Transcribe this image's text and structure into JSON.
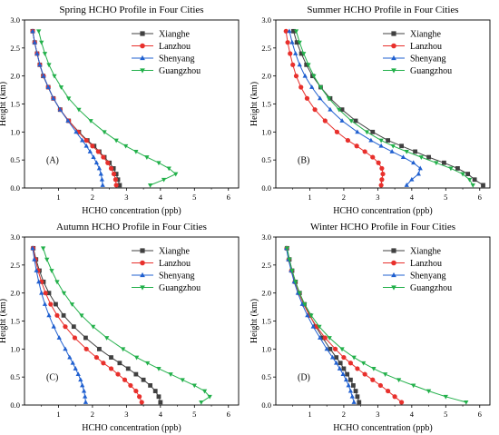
{
  "colors": {
    "Xianghe": "#404040",
    "Lanzhou": "#e8302c",
    "Shenyang": "#2060d0",
    "Guangzhou": "#22b04a"
  },
  "chart_data": [
    {
      "type": "line",
      "title": "Spring HCHO Profile in Four Cities",
      "panel_label": "(A)",
      "xlabel": "HCHO concentration (ppb)",
      "ylabel": "Height (km)",
      "xlim": [
        0,
        6.3
      ],
      "ylim": [
        0,
        3.0
      ],
      "xticks": [
        "1",
        "2",
        "3",
        "4",
        "5",
        "6"
      ],
      "yticks": [
        "0.0",
        "0.5",
        "1.0",
        "1.5",
        "2.0",
        "2.5",
        "3.0"
      ],
      "legend": "top-right",
      "series": [
        {
          "name": "Xianghe",
          "marker": "square",
          "y": [
            0.05,
            0.15,
            0.25,
            0.35,
            0.45,
            0.55,
            0.65,
            0.75,
            0.85,
            1.0,
            1.2,
            1.4,
            1.6,
            1.8,
            2.0,
            2.2,
            2.4,
            2.6,
            2.8
          ],
          "x": [
            2.8,
            2.75,
            2.7,
            2.62,
            2.5,
            2.35,
            2.2,
            2.05,
            1.85,
            1.6,
            1.3,
            1.05,
            0.85,
            0.7,
            0.55,
            0.45,
            0.37,
            0.3,
            0.24
          ]
        },
        {
          "name": "Lanzhou",
          "marker": "circle",
          "y": [
            0.05,
            0.15,
            0.25,
            0.35,
            0.45,
            0.55,
            0.65,
            0.75,
            0.85,
            1.0,
            1.2,
            1.4,
            1.6,
            1.8,
            2.0,
            2.2,
            2.4,
            2.6,
            2.8
          ],
          "x": [
            2.7,
            2.68,
            2.63,
            2.55,
            2.45,
            2.32,
            2.17,
            2.0,
            1.82,
            1.58,
            1.3,
            1.05,
            0.85,
            0.7,
            0.56,
            0.45,
            0.37,
            0.3,
            0.24
          ]
        },
        {
          "name": "Shenyang",
          "marker": "triangle-up",
          "y": [
            0.05,
            0.15,
            0.25,
            0.35,
            0.45,
            0.55,
            0.65,
            0.75,
            0.85,
            1.0,
            1.2,
            1.4,
            1.6,
            1.8,
            2.0,
            2.2,
            2.4,
            2.6,
            2.8
          ],
          "x": [
            2.3,
            2.28,
            2.25,
            2.2,
            2.12,
            2.03,
            1.93,
            1.82,
            1.7,
            1.52,
            1.28,
            1.05,
            0.85,
            0.7,
            0.56,
            0.45,
            0.37,
            0.3,
            0.24
          ]
        },
        {
          "name": "Guangzhou",
          "marker": "triangle-down",
          "y": [
            0.05,
            0.15,
            0.25,
            0.35,
            0.45,
            0.55,
            0.65,
            0.75,
            0.85,
            1.0,
            1.2,
            1.4,
            1.6,
            1.8,
            2.0,
            2.2,
            2.4,
            2.6,
            2.8
          ],
          "x": [
            3.7,
            4.1,
            4.45,
            4.25,
            3.95,
            3.6,
            3.28,
            2.98,
            2.7,
            2.35,
            1.95,
            1.6,
            1.3,
            1.08,
            0.88,
            0.72,
            0.6,
            0.5,
            0.42
          ]
        }
      ]
    },
    {
      "type": "line",
      "title": "Summer HCHO Profile in Four Cities",
      "panel_label": "(B)",
      "xlabel": "HCHO concentration (ppb)",
      "ylabel": "Height (km)",
      "xlim": [
        0,
        6.3
      ],
      "ylim": [
        0,
        3.0
      ],
      "xticks": [
        "1",
        "2",
        "3",
        "4",
        "5",
        "6"
      ],
      "yticks": [
        "0.0",
        "0.5",
        "1.0",
        "1.5",
        "2.0",
        "2.5",
        "3.0"
      ],
      "legend": "top-right",
      "series": [
        {
          "name": "Xianghe",
          "marker": "square",
          "y": [
            0.05,
            0.15,
            0.25,
            0.35,
            0.45,
            0.55,
            0.65,
            0.75,
            0.85,
            1.0,
            1.2,
            1.4,
            1.6,
            1.8,
            2.0,
            2.2,
            2.4,
            2.6,
            2.8
          ],
          "x": [
            6.1,
            5.85,
            5.65,
            5.35,
            4.95,
            4.5,
            4.1,
            3.7,
            3.3,
            2.85,
            2.35,
            1.95,
            1.6,
            1.32,
            1.08,
            0.9,
            0.75,
            0.62,
            0.52
          ]
        },
        {
          "name": "Lanzhou",
          "marker": "circle",
          "y": [
            0.05,
            0.15,
            0.25,
            0.35,
            0.45,
            0.55,
            0.65,
            0.75,
            0.85,
            1.0,
            1.2,
            1.4,
            1.6,
            1.8,
            2.0,
            2.2,
            2.4,
            2.6,
            2.8
          ],
          "x": [
            3.1,
            3.12,
            3.15,
            3.12,
            3.02,
            2.85,
            2.62,
            2.38,
            2.12,
            1.8,
            1.45,
            1.15,
            0.92,
            0.74,
            0.6,
            0.5,
            0.42,
            0.35,
            0.3
          ]
        },
        {
          "name": "Shenyang",
          "marker": "triangle-up",
          "y": [
            0.05,
            0.15,
            0.25,
            0.35,
            0.45,
            0.55,
            0.65,
            0.75,
            0.85,
            1.0,
            1.2,
            1.4,
            1.6,
            1.8,
            2.0,
            2.2,
            2.4,
            2.6,
            2.8
          ],
          "x": [
            3.85,
            4.0,
            4.2,
            4.25,
            4.05,
            3.75,
            3.42,
            3.1,
            2.8,
            2.4,
            1.95,
            1.6,
            1.3,
            1.06,
            0.86,
            0.7,
            0.58,
            0.48,
            0.4
          ]
        },
        {
          "name": "Guangzhou",
          "marker": "triangle-down",
          "y": [
            0.05,
            0.15,
            0.25,
            0.35,
            0.45,
            0.55,
            0.65,
            0.75,
            0.85,
            1.0,
            1.2,
            1.4,
            1.6,
            1.8,
            2.0,
            2.2,
            2.4,
            2.6,
            2.8
          ],
          "x": [
            5.8,
            5.7,
            5.5,
            5.15,
            4.72,
            4.28,
            3.85,
            3.45,
            3.1,
            2.68,
            2.22,
            1.86,
            1.56,
            1.32,
            1.12,
            0.96,
            0.82,
            0.7,
            0.6
          ]
        }
      ]
    },
    {
      "type": "line",
      "title": "Autumn HCHO Profile in Four Cities",
      "panel_label": "(C)",
      "xlabel": "HCHO concentration (ppb)",
      "ylabel": "Height (km)",
      "xlim": [
        0,
        6.3
      ],
      "ylim": [
        0,
        3.0
      ],
      "xticks": [
        "1",
        "2",
        "3",
        "4",
        "5",
        "6"
      ],
      "yticks": [
        "0.0",
        "0.5",
        "1.0",
        "1.5",
        "2.0",
        "2.5",
        "3.0"
      ],
      "legend": "top-right",
      "series": [
        {
          "name": "Xianghe",
          "marker": "square",
          "y": [
            0.05,
            0.15,
            0.25,
            0.35,
            0.45,
            0.55,
            0.65,
            0.75,
            0.85,
            1.0,
            1.2,
            1.4,
            1.6,
            1.8,
            2.0,
            2.2,
            2.4,
            2.6,
            2.8
          ],
          "x": [
            4.0,
            3.95,
            3.85,
            3.7,
            3.5,
            3.28,
            3.05,
            2.8,
            2.55,
            2.2,
            1.8,
            1.45,
            1.15,
            0.92,
            0.72,
            0.56,
            0.44,
            0.34,
            0.26
          ]
        },
        {
          "name": "Lanzhou",
          "marker": "circle",
          "y": [
            0.05,
            0.15,
            0.25,
            0.35,
            0.45,
            0.55,
            0.65,
            0.75,
            0.85,
            1.0,
            1.2,
            1.4,
            1.6,
            1.8,
            2.0,
            2.2,
            2.4,
            2.6,
            2.8
          ],
          "x": [
            3.45,
            3.38,
            3.28,
            3.12,
            2.95,
            2.75,
            2.55,
            2.32,
            2.12,
            1.82,
            1.48,
            1.2,
            0.96,
            0.77,
            0.62,
            0.5,
            0.4,
            0.32,
            0.25
          ]
        },
        {
          "name": "Shenyang",
          "marker": "triangle-up",
          "y": [
            0.05,
            0.15,
            0.25,
            0.35,
            0.45,
            0.55,
            0.65,
            0.75,
            0.85,
            1.0,
            1.2,
            1.4,
            1.6,
            1.8,
            2.0,
            2.2,
            2.4,
            2.6,
            2.8
          ],
          "x": [
            1.8,
            1.78,
            1.75,
            1.7,
            1.65,
            1.58,
            1.5,
            1.42,
            1.33,
            1.2,
            1.02,
            0.86,
            0.72,
            0.6,
            0.5,
            0.42,
            0.35,
            0.29,
            0.24
          ]
        },
        {
          "name": "Guangzhou",
          "marker": "triangle-down",
          "y": [
            0.05,
            0.15,
            0.25,
            0.35,
            0.45,
            0.55,
            0.65,
            0.75,
            0.85,
            1.0,
            1.2,
            1.4,
            1.6,
            1.8,
            2.0,
            2.2,
            2.4,
            2.6,
            2.8
          ],
          "x": [
            5.2,
            5.45,
            5.3,
            5.0,
            4.65,
            4.3,
            3.95,
            3.62,
            3.3,
            2.9,
            2.42,
            2.02,
            1.68,
            1.4,
            1.16,
            0.96,
            0.8,
            0.66,
            0.55
          ]
        }
      ]
    },
    {
      "type": "line",
      "title": "Winter HCHO Profile in Four Cities",
      "panel_label": "(D)",
      "xlabel": "HCHO concentration (ppb)",
      "ylabel": "Height (km)",
      "xlim": [
        0,
        6.3
      ],
      "ylim": [
        0,
        3.0
      ],
      "xticks": [
        "1",
        "2",
        "3",
        "4",
        "5",
        "6"
      ],
      "yticks": [
        "0.0",
        "0.5",
        "1.0",
        "1.5",
        "2.0",
        "2.5",
        "3.0"
      ],
      "legend": "top-right",
      "series": [
        {
          "name": "Xianghe",
          "marker": "square",
          "y": [
            0.05,
            0.15,
            0.25,
            0.35,
            0.45,
            0.55,
            0.65,
            0.75,
            0.85,
            1.0,
            1.2,
            1.4,
            1.6,
            1.8,
            2.0,
            2.2,
            2.4,
            2.6,
            2.8
          ],
          "x": [
            2.45,
            2.4,
            2.35,
            2.28,
            2.2,
            2.1,
            2.0,
            1.9,
            1.78,
            1.6,
            1.38,
            1.18,
            1.0,
            0.84,
            0.7,
            0.58,
            0.48,
            0.4,
            0.33
          ]
        },
        {
          "name": "Lanzhou",
          "marker": "circle",
          "y": [
            0.05,
            0.15,
            0.25,
            0.35,
            0.45,
            0.55,
            0.65,
            0.75,
            0.85,
            1.0,
            1.2,
            1.4,
            1.6,
            1.8,
            2.0,
            2.2,
            2.4,
            2.6,
            2.8
          ],
          "x": [
            3.7,
            3.5,
            3.3,
            3.08,
            2.85,
            2.62,
            2.4,
            2.2,
            2.0,
            1.75,
            1.45,
            1.2,
            0.99,
            0.82,
            0.68,
            0.56,
            0.46,
            0.38,
            0.32
          ]
        },
        {
          "name": "Shenyang",
          "marker": "triangle-up",
          "y": [
            0.05,
            0.15,
            0.25,
            0.35,
            0.45,
            0.55,
            0.65,
            0.75,
            0.85,
            1.0,
            1.2,
            1.4,
            1.6,
            1.8,
            2.0,
            2.2,
            2.4,
            2.6,
            2.8
          ],
          "x": [
            2.3,
            2.25,
            2.2,
            2.14,
            2.07,
            1.98,
            1.88,
            1.78,
            1.67,
            1.5,
            1.3,
            1.1,
            0.93,
            0.78,
            0.65,
            0.54,
            0.45,
            0.37,
            0.31
          ]
        },
        {
          "name": "Guangzhou",
          "marker": "triangle-down",
          "y": [
            0.05,
            0.15,
            0.25,
            0.35,
            0.45,
            0.55,
            0.65,
            0.75,
            0.85,
            1.0,
            1.2,
            1.4,
            1.6,
            1.8,
            2.0,
            2.2,
            2.4,
            2.6,
            2.8
          ],
          "x": [
            5.6,
            5.0,
            4.5,
            4.05,
            3.62,
            3.22,
            2.88,
            2.58,
            2.3,
            1.95,
            1.58,
            1.28,
            1.04,
            0.85,
            0.7,
            0.58,
            0.48,
            0.4,
            0.33
          ]
        }
      ]
    }
  ]
}
